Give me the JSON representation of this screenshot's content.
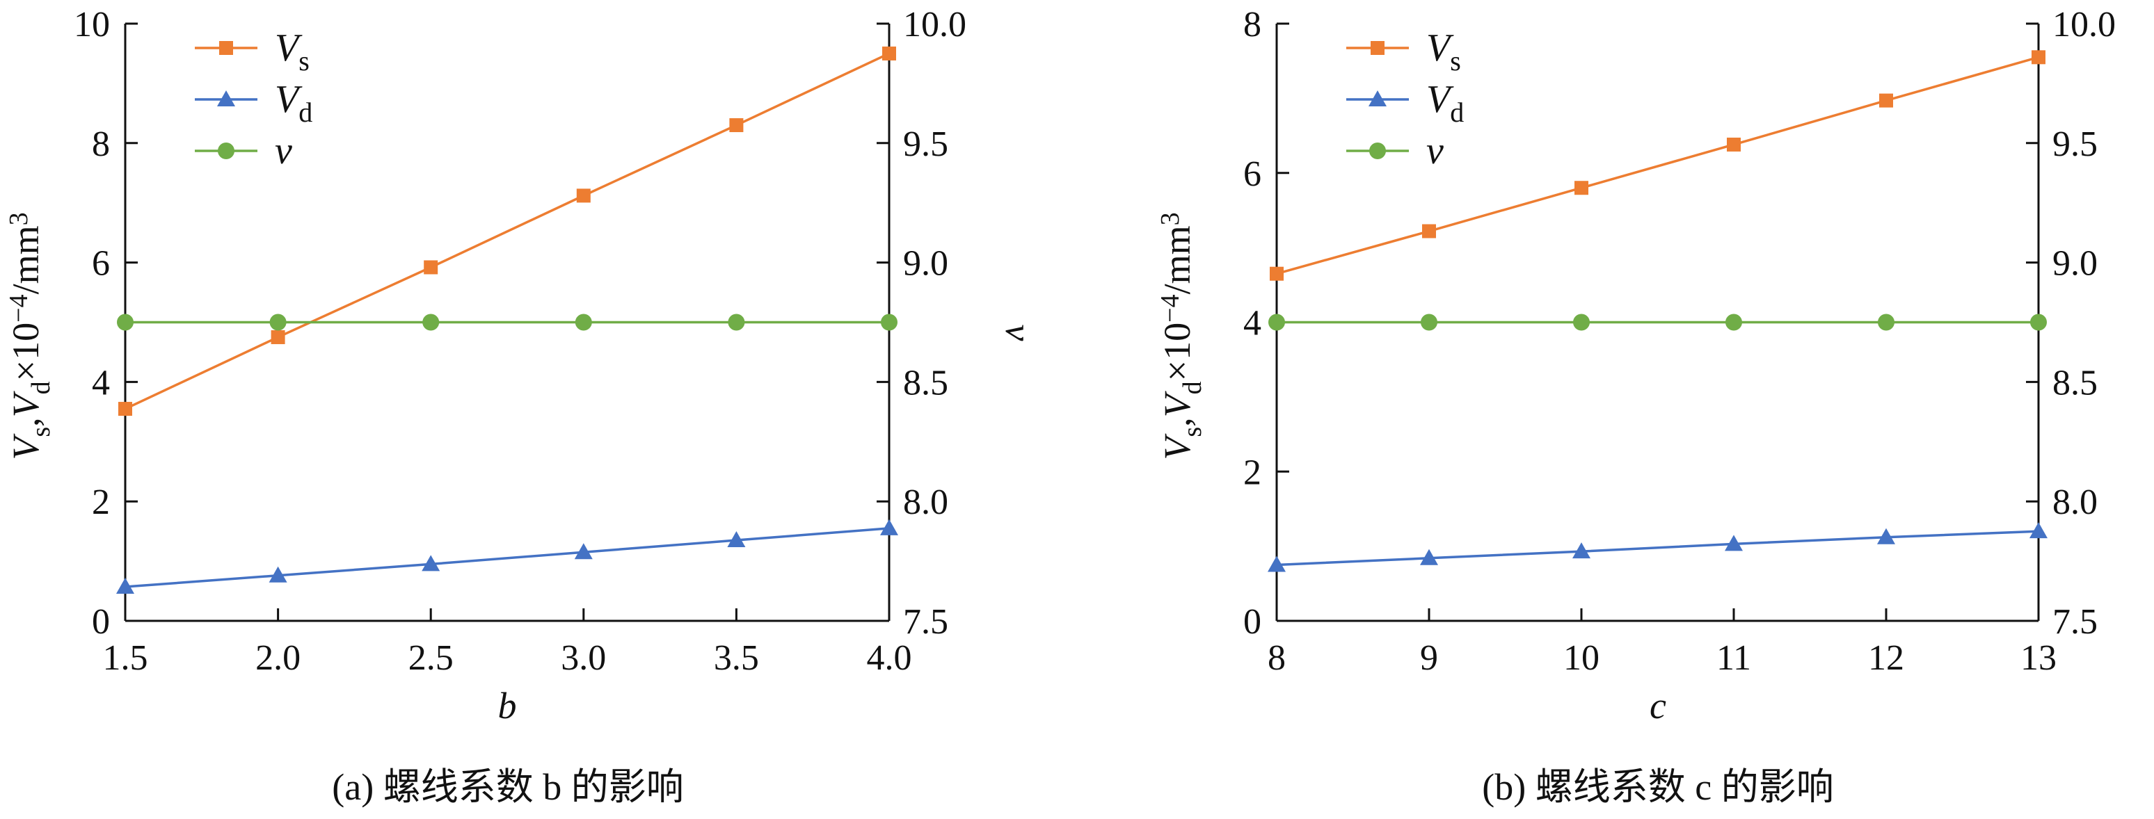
{
  "chart_data": [
    {
      "type": "line",
      "panel": "a",
      "caption": "(a)  螺线系数 b 的影响",
      "xlabel": "b",
      "ylabel": "Vs,Vd×10−4/mm3",
      "y2label": "ν",
      "x": [
        1.5,
        2.0,
        2.5,
        3.0,
        3.5,
        4.0
      ],
      "xticks": [
        "1.5",
        "2.0",
        "2.5",
        "3.0",
        "3.5",
        "4.0"
      ],
      "xlim": [
        1.5,
        4.0
      ],
      "ylim": [
        0,
        10
      ],
      "yticks": [
        "0",
        "2",
        "4",
        "6",
        "8",
        "10"
      ],
      "y2lim": [
        7.5,
        10.0
      ],
      "y2ticks": [
        "7.5",
        "8.0",
        "8.5",
        "9.0",
        "9.5",
        "10.0"
      ],
      "series": [
        {
          "name": "Vs",
          "axis": "left",
          "marker": "square",
          "color": "#ED7D31",
          "values": [
            3.55,
            4.75,
            5.92,
            7.12,
            8.3,
            9.5
          ]
        },
        {
          "name": "Vd",
          "axis": "left",
          "marker": "triangle",
          "color": "#4472C4",
          "values": [
            0.57,
            0.76,
            0.95,
            1.15,
            1.35,
            1.55
          ]
        },
        {
          "name": "ν",
          "axis": "right",
          "marker": "circle",
          "color": "#70AD47",
          "values": [
            8.75,
            8.75,
            8.75,
            8.75,
            8.75,
            8.75
          ]
        }
      ],
      "legend": "top-left",
      "grid": false
    },
    {
      "type": "line",
      "panel": "b",
      "caption": "(b)  螺线系数 c 的影响",
      "xlabel": "c",
      "ylabel": "Vs,Vd×10−4/mm3",
      "y2label": "ν",
      "x": [
        8,
        9,
        10,
        11,
        12,
        13
      ],
      "xticks": [
        "8",
        "9",
        "10",
        "11",
        "12",
        "13"
      ],
      "xlim": [
        8,
        13
      ],
      "ylim": [
        0,
        8
      ],
      "yticks": [
        "0",
        "2",
        "4",
        "6",
        "8"
      ],
      "y2lim": [
        7.5,
        10.0
      ],
      "y2ticks": [
        "7.5",
        "8.0",
        "8.5",
        "9.0",
        "9.5",
        "10.0"
      ],
      "series": [
        {
          "name": "Vs",
          "axis": "left",
          "marker": "square",
          "color": "#ED7D31",
          "values": [
            4.65,
            5.22,
            5.8,
            6.38,
            6.97,
            7.55
          ]
        },
        {
          "name": "Vd",
          "axis": "left",
          "marker": "triangle",
          "color": "#4472C4",
          "values": [
            0.75,
            0.84,
            0.93,
            1.03,
            1.12,
            1.2
          ]
        },
        {
          "name": "ν",
          "axis": "right",
          "marker": "circle",
          "color": "#70AD47",
          "values": [
            8.75,
            8.75,
            8.75,
            8.75,
            8.75,
            8.75
          ]
        }
      ],
      "legend": "top-left",
      "grid": false
    }
  ]
}
